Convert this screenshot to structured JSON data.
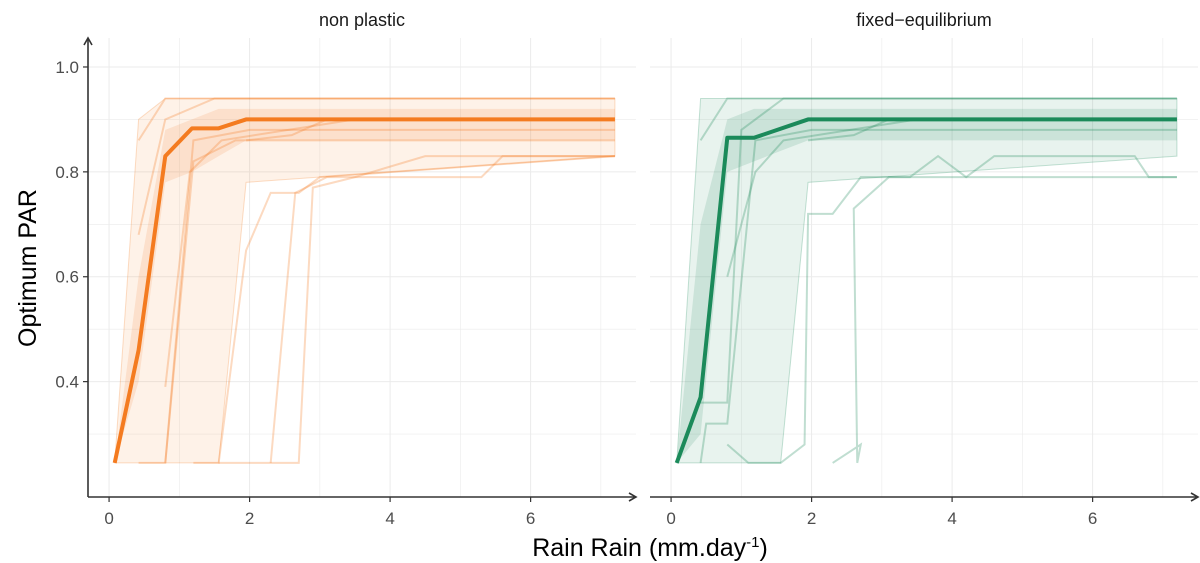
{
  "chart_data": {
    "type": "line",
    "xlabel": "Rain Rain (mm.day",
    "xlabel_sup": "-1",
    "xlabel_close": ")",
    "ylabel": "Optimum PAR",
    "xlim": [
      -0.3,
      7.5
    ],
    "ylim": [
      0.18,
      1.04
    ],
    "xticks": [
      0,
      2,
      4,
      6
    ],
    "yticks": [
      0.4,
      0.6,
      0.8,
      1.0
    ],
    "xtick_labels": [
      "0",
      "2",
      "4",
      "6"
    ],
    "ytick_labels": [
      "0.4",
      "0.6",
      "0.8",
      "1.0"
    ],
    "grid": true,
    "panels": [
      {
        "title": "non plastic",
        "color": "#f47b20",
        "mean": [
          [
            0.08,
            0.245
          ],
          [
            0.42,
            0.46
          ],
          [
            0.8,
            0.83
          ],
          [
            1.18,
            0.883
          ],
          [
            1.56,
            0.883
          ],
          [
            1.95,
            0.9
          ],
          [
            2.3,
            0.9
          ],
          [
            7.2,
            0.9
          ]
        ],
        "ribbon_outer": {
          "x": [
            0.08,
            0.42,
            0.8,
            1.18,
            1.56,
            1.95,
            7.2
          ],
          "low": [
            0.245,
            0.245,
            0.245,
            0.245,
            0.245,
            0.78,
            0.83
          ],
          "high": [
            0.245,
            0.9,
            0.94,
            0.94,
            0.94,
            0.94,
            0.94
          ]
        },
        "ribbon_inner": {
          "x": [
            0.08,
            0.42,
            0.8,
            1.18,
            1.56,
            1.95,
            7.2
          ],
          "low": [
            0.245,
            0.4,
            0.78,
            0.8,
            0.83,
            0.86,
            0.86
          ],
          "high": [
            0.245,
            0.6,
            0.88,
            0.9,
            0.92,
            0.92,
            0.92
          ]
        },
        "individual_lines": [
          [
            [
              0.42,
              0.245
            ],
            [
              0.8,
              0.245
            ],
            [
              1.2,
              0.86
            ],
            [
              2,
              0.88
            ],
            [
              7.2,
              0.88
            ]
          ],
          [
            [
              0.42,
              0.68
            ],
            [
              0.8,
              0.9
            ],
            [
              1.5,
              0.94
            ],
            [
              7.2,
              0.94
            ]
          ],
          [
            [
              0.8,
              0.245
            ],
            [
              1.2,
              0.82
            ],
            [
              1.8,
              0.86
            ],
            [
              7.2,
              0.86
            ]
          ],
          [
            [
              0.8,
              0.39
            ],
            [
              1.15,
              0.8
            ],
            [
              1.6,
              0.86
            ],
            [
              3.5,
              0.9
            ],
            [
              7.2,
              0.9
            ]
          ],
          [
            [
              1.2,
              0.245
            ],
            [
              1.56,
              0.245
            ],
            [
              1.95,
              0.65
            ],
            [
              2.3,
              0.76
            ],
            [
              2.7,
              0.76
            ],
            [
              3,
              0.79
            ],
            [
              7.2,
              0.83
            ]
          ],
          [
            [
              2.3,
              0.245
            ],
            [
              2.65,
              0.76
            ],
            [
              3.1,
              0.79
            ],
            [
              5.3,
              0.79
            ],
            [
              5.6,
              0.83
            ],
            [
              7.2,
              0.83
            ]
          ],
          [
            [
              1.56,
              0.245
            ],
            [
              2.3,
              0.245
            ],
            [
              2.7,
              0.245
            ],
            [
              2.9,
              0.77
            ],
            [
              3.5,
              0.79
            ],
            [
              4.5,
              0.83
            ],
            [
              7.2,
              0.83
            ]
          ],
          [
            [
              0.42,
              0.86
            ],
            [
              0.8,
              0.94
            ],
            [
              7.2,
              0.94
            ]
          ],
          [
            [
              1.95,
              0.86
            ],
            [
              2.6,
              0.87
            ],
            [
              3.1,
              0.9
            ],
            [
              7.2,
              0.9
            ]
          ]
        ]
      },
      {
        "title": "fixed−equilibrium",
        "color": "#1b8a5a",
        "mean": [
          [
            0.08,
            0.245
          ],
          [
            0.42,
            0.37
          ],
          [
            0.8,
            0.865
          ],
          [
            1.18,
            0.865
          ],
          [
            1.95,
            0.9
          ],
          [
            2.3,
            0.9
          ],
          [
            7.2,
            0.9
          ]
        ],
        "ribbon_outer": {
          "x": [
            0.08,
            0.42,
            0.8,
            1.18,
            1.56,
            1.95,
            7.2
          ],
          "low": [
            0.245,
            0.245,
            0.245,
            0.245,
            0.245,
            0.78,
            0.83
          ],
          "high": [
            0.245,
            0.94,
            0.94,
            0.94,
            0.94,
            0.94,
            0.94
          ]
        },
        "ribbon_inner": {
          "x": [
            0.08,
            0.42,
            0.8,
            1.18,
            1.56,
            1.95,
            7.2
          ],
          "low": [
            0.245,
            0.3,
            0.8,
            0.82,
            0.84,
            0.86,
            0.86
          ],
          "high": [
            0.245,
            0.7,
            0.9,
            0.92,
            0.92,
            0.92,
            0.92
          ]
        },
        "individual_lines": [
          [
            [
              0.42,
              0.245
            ],
            [
              0.5,
              0.32
            ],
            [
              0.8,
              0.32
            ],
            [
              1.2,
              0.86
            ],
            [
              2,
              0.88
            ],
            [
              7.2,
              0.88
            ]
          ],
          [
            [
              0.42,
              0.36
            ],
            [
              0.8,
              0.36
            ],
            [
              1.0,
              0.88
            ],
            [
              1.6,
              0.94
            ],
            [
              7.2,
              0.94
            ]
          ],
          [
            [
              0.8,
              0.28
            ],
            [
              1.1,
              0.245
            ],
            [
              1.56,
              0.245
            ],
            [
              1.9,
              0.28
            ],
            [
              1.95,
              0.72
            ],
            [
              2.3,
              0.72
            ],
            [
              2.7,
              0.79
            ],
            [
              3.4,
              0.79
            ],
            [
              3.8,
              0.83
            ],
            [
              4.2,
              0.79
            ],
            [
              4.6,
              0.83
            ],
            [
              6.6,
              0.83
            ],
            [
              6.8,
              0.79
            ],
            [
              7.2,
              0.79
            ]
          ],
          [
            [
              2.3,
              0.245
            ],
            [
              2.7,
              0.28
            ],
            [
              2.65,
              0.245
            ],
            [
              2.6,
              0.73
            ],
            [
              3.1,
              0.79
            ],
            [
              7.2,
              0.79
            ]
          ],
          [
            [
              0.8,
              0.6
            ],
            [
              1.2,
              0.8
            ],
            [
              1.6,
              0.86
            ],
            [
              3.5,
              0.9
            ],
            [
              7.2,
              0.9
            ]
          ],
          [
            [
              0.42,
              0.86
            ],
            [
              0.8,
              0.94
            ],
            [
              7.2,
              0.94
            ]
          ],
          [
            [
              1.95,
              0.86
            ],
            [
              2.6,
              0.87
            ],
            [
              3.1,
              0.9
            ],
            [
              7.2,
              0.9
            ]
          ]
        ]
      }
    ]
  }
}
